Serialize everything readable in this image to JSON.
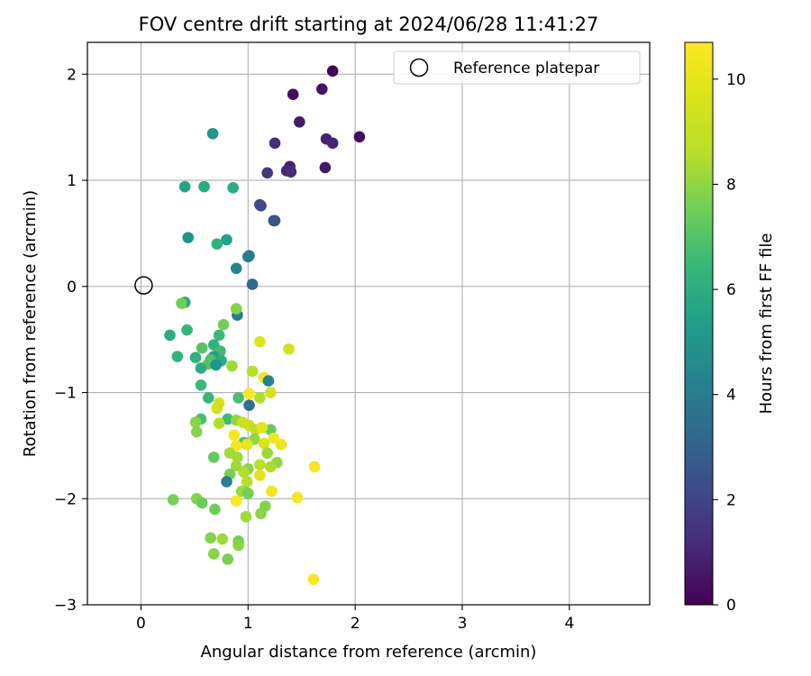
{
  "chart_data": {
    "type": "scatter",
    "title": "FOV centre drift starting at 2024/06/28 11:41:27",
    "xlabel": "Angular distance from reference (arcmin)",
    "ylabel": "Rotation from reference (arcmin)",
    "xlim": [
      -0.5,
      4.75
    ],
    "ylim": [
      -3,
      2.3
    ],
    "xticks": [
      "0",
      "1",
      "2",
      "3",
      "4"
    ],
    "yticks": [
      "−3",
      "−2",
      "−1",
      "0",
      "1",
      "2"
    ],
    "grid": true,
    "legend": {
      "placement": "top-right",
      "entries": [
        "Reference platepar"
      ]
    },
    "reference_point": {
      "x": 0,
      "y": 0
    },
    "colorbar": {
      "label": "Hours from first FF file",
      "colormap": "viridis",
      "range": [
        0,
        10.7
      ],
      "ticks": [
        "0",
        "2",
        "4",
        "6",
        "8",
        "10"
      ]
    },
    "points": [
      [
        1.79,
        2.03,
        0.1
      ],
      [
        1.42,
        1.81,
        0.3
      ],
      [
        1.69,
        1.86,
        0.5
      ],
      [
        1.48,
        1.55,
        0.7
      ],
      [
        1.73,
        1.39,
        0.9
      ],
      [
        1.79,
        1.35,
        1.0
      ],
      [
        2.04,
        1.41,
        0.3
      ],
      [
        1.25,
        1.35,
        1.3
      ],
      [
        1.72,
        1.12,
        0.6
      ],
      [
        1.39,
        1.13,
        0.8
      ],
      [
        1.36,
        1.09,
        1.0
      ],
      [
        1.4,
        1.08,
        1.2
      ],
      [
        1.18,
        1.07,
        1.5
      ],
      [
        1.11,
        0.77,
        2.0
      ],
      [
        1.12,
        0.76,
        2.2
      ],
      [
        1.24,
        0.62,
        2.4
      ],
      [
        1.25,
        0.62,
        2.6
      ],
      [
        1.01,
        0.29,
        3.6
      ],
      [
        1.0,
        0.28,
        4.0
      ],
      [
        0.89,
        0.17,
        4.4
      ],
      [
        1.04,
        0.02,
        3.2
      ],
      [
        0.67,
        1.44,
        5.0
      ],
      [
        0.41,
        0.94,
        5.6
      ],
      [
        0.59,
        0.94,
        5.8
      ],
      [
        0.86,
        0.93,
        6.0
      ],
      [
        0.44,
        0.46,
        5.0
      ],
      [
        0.8,
        0.44,
        5.5
      ],
      [
        0.71,
        0.4,
        6.2
      ],
      [
        0.9,
        -0.27,
        4.0
      ],
      [
        0.41,
        -0.15,
        5.5
      ],
      [
        0.38,
        -0.16,
        7.5
      ],
      [
        0.89,
        -0.21,
        7.8
      ],
      [
        0.77,
        -0.36,
        7.5
      ],
      [
        0.43,
        -0.41,
        6.4
      ],
      [
        0.27,
        -0.46,
        5.9
      ],
      [
        0.73,
        -0.46,
        6.5
      ],
      [
        0.68,
        -0.55,
        6.2
      ],
      [
        0.57,
        -0.58,
        7.0
      ],
      [
        0.74,
        -0.61,
        6.6
      ],
      [
        0.34,
        -0.66,
        6.3
      ],
      [
        0.51,
        -0.67,
        6.1
      ],
      [
        0.68,
        -0.66,
        5.4
      ],
      [
        0.65,
        -0.69,
        6.9
      ],
      [
        0.75,
        -0.7,
        6.0
      ],
      [
        0.63,
        -0.73,
        7.0
      ],
      [
        0.7,
        -0.74,
        5.0
      ],
      [
        0.56,
        -0.77,
        6.0
      ],
      [
        0.85,
        -0.75,
        8.2
      ],
      [
        1.11,
        -0.52,
        9.8
      ],
      [
        1.38,
        -0.59,
        9.3
      ],
      [
        1.04,
        -0.8,
        8.6
      ],
      [
        1.15,
        -0.86,
        10.3
      ],
      [
        1.19,
        -0.89,
        4.3
      ],
      [
        0.56,
        -0.93,
        6.5
      ],
      [
        1.21,
        -1.0,
        9.5
      ],
      [
        1.01,
        -1.01,
        10.6
      ],
      [
        0.63,
        -1.05,
        6.4
      ],
      [
        0.91,
        -1.05,
        6.8
      ],
      [
        1.11,
        -1.05,
        8.5
      ],
      [
        0.73,
        -1.1,
        9.5
      ],
      [
        0.71,
        -1.15,
        9.4
      ],
      [
        1.01,
        -1.12,
        3.6
      ],
      [
        0.56,
        -1.25,
        6.8
      ],
      [
        0.81,
        -1.25,
        6.6
      ],
      [
        0.89,
        -1.26,
        8.0
      ],
      [
        0.95,
        -1.28,
        9.1
      ],
      [
        0.73,
        -1.29,
        8.5
      ],
      [
        0.51,
        -1.28,
        7.9
      ],
      [
        1.01,
        -1.31,
        9.2
      ],
      [
        1.21,
        -1.35,
        7.3
      ],
      [
        1.07,
        -1.35,
        8.8
      ],
      [
        1.13,
        -1.33,
        9.9
      ],
      [
        0.52,
        -1.37,
        7.8
      ],
      [
        0.87,
        -1.4,
        10.5
      ],
      [
        1.24,
        -1.43,
        10.3
      ],
      [
        1.06,
        -1.44,
        8.0
      ],
      [
        0.96,
        -1.47,
        7.0
      ],
      [
        1.15,
        -1.48,
        9.6
      ],
      [
        0.89,
        -1.5,
        10.4
      ],
      [
        0.99,
        -1.49,
        10.1
      ],
      [
        1.31,
        -1.49,
        10.2
      ],
      [
        0.83,
        -1.57,
        8.3
      ],
      [
        1.18,
        -1.57,
        8.2
      ],
      [
        0.9,
        -1.61,
        8.3
      ],
      [
        0.68,
        -1.61,
        7.3
      ],
      [
        1.11,
        -1.68,
        8.7
      ],
      [
        1.27,
        -1.66,
        8.0
      ],
      [
        1.21,
        -1.7,
        8.4
      ],
      [
        0.89,
        -1.69,
        8.2
      ],
      [
        1.62,
        -1.7,
        10.5
      ],
      [
        1.0,
        -1.72,
        7.9
      ],
      [
        0.83,
        -1.77,
        7.6
      ],
      [
        1.11,
        -1.78,
        9.9
      ],
      [
        0.96,
        -1.75,
        8.5
      ],
      [
        0.8,
        -1.84,
        4.2
      ],
      [
        0.99,
        -1.84,
        8.7
      ],
      [
        0.97,
        -1.93,
        8.0
      ],
      [
        0.94,
        -1.93,
        8.2
      ],
      [
        1.0,
        -1.95,
        7.6
      ],
      [
        1.22,
        -1.93,
        10.3
      ],
      [
        0.3,
        -2.01,
        7.6
      ],
      [
        0.52,
        -2.0,
        7.8
      ],
      [
        0.57,
        -2.04,
        7.4
      ],
      [
        0.89,
        -2.02,
        10.6
      ],
      [
        1.46,
        -1.99,
        10.5
      ],
      [
        0.69,
        -2.1,
        7.5
      ],
      [
        1.16,
        -2.07,
        7.8
      ],
      [
        1.12,
        -2.14,
        7.9
      ],
      [
        0.98,
        -2.17,
        8.2
      ],
      [
        0.65,
        -2.37,
        7.8
      ],
      [
        0.76,
        -2.38,
        8.2
      ],
      [
        0.91,
        -2.4,
        7.6
      ],
      [
        0.91,
        -2.44,
        7.9
      ],
      [
        0.68,
        -2.52,
        7.9
      ],
      [
        0.81,
        -2.57,
        7.6
      ],
      [
        1.61,
        -2.76,
        10.6
      ]
    ]
  }
}
